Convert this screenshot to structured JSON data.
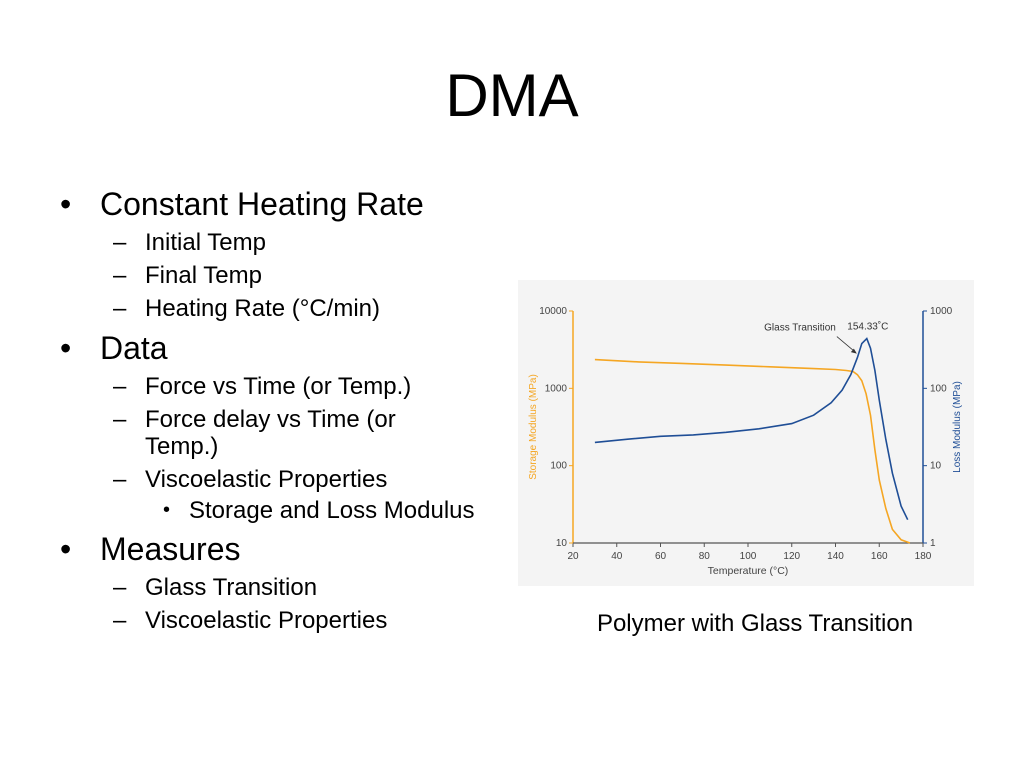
{
  "slide": {
    "title": "DMA",
    "caption": "Polymer with Glass Transition",
    "bullets": {
      "constant_heating_rate": {
        "label": "Constant Heating Rate",
        "sub": [
          "Initial Temp",
          "Final Temp",
          "Heating Rate (°C/min)"
        ]
      },
      "data": {
        "label": "Data",
        "sub": [
          "Force vs Time (or Temp.)",
          "Force delay vs Time (or Temp.)",
          "Viscoelastic Properties"
        ],
        "sub_sub": [
          "Storage and Loss Modulus"
        ]
      },
      "measures": {
        "label": "Measures",
        "sub": [
          "Glass Transition",
          "Viscoelastic Properties"
        ]
      }
    },
    "marks": {
      "bullet": "•",
      "dash": "–"
    }
  },
  "chart_data": {
    "type": "line",
    "xlabel": "Temperature (°C)",
    "ylabel_left": "Storage Modulus (MPa)",
    "ylabel_right": "Loss Modulus (MPa)",
    "xlim": [
      20,
      180
    ],
    "x_ticks": [
      20,
      40,
      60,
      80,
      100,
      120,
      140,
      160,
      180
    ],
    "y_left_log": true,
    "y_left_lim": [
      10,
      10000
    ],
    "y_left_ticks": [
      10,
      100,
      1000,
      10000
    ],
    "y_right_log": true,
    "y_right_lim": [
      1,
      1000
    ],
    "y_right_ticks": [
      1,
      10,
      100,
      1000
    ],
    "annotation": {
      "label": "Glass Transition",
      "value_label": "154.33˚C",
      "x": 154.33
    },
    "colors": {
      "storage": "#f5a623",
      "loss": "#1f4e96",
      "axis_left": "#f5a623",
      "axis_right": "#1f4e96",
      "axis_bottom": "#555555"
    },
    "series": [
      {
        "axis": "left",
        "x": [
          30,
          50,
          70,
          90,
          110,
          130,
          140,
          145,
          148,
          150,
          152,
          154,
          156,
          158,
          160,
          163,
          166,
          170,
          174
        ],
        "values": [
          2350,
          2200,
          2100,
          2000,
          1900,
          1800,
          1750,
          1700,
          1650,
          1500,
          1250,
          850,
          450,
          160,
          65,
          28,
          15,
          11,
          10
        ]
      },
      {
        "axis": "right",
        "x": [
          30,
          45,
          60,
          75,
          90,
          105,
          120,
          130,
          138,
          143,
          147,
          150,
          152,
          154.33,
          156,
          158,
          160,
          163,
          166,
          170,
          173
        ],
        "values": [
          20,
          22,
          24,
          25,
          27,
          30,
          35,
          45,
          65,
          95,
          150,
          250,
          380,
          440,
          330,
          170,
          70,
          22,
          8,
          3,
          2
        ]
      }
    ]
  }
}
